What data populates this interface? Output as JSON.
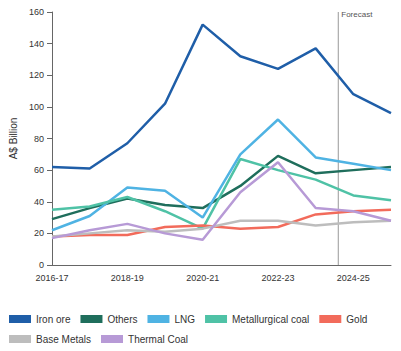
{
  "chart_data": {
    "type": "line",
    "y_label": "A$ Billion",
    "categories": [
      "2016-17",
      null,
      "2018-19",
      null,
      "2020-21",
      null,
      "2022-23",
      null,
      "2024-25",
      null
    ],
    "ylim": [
      0,
      160
    ],
    "yticks": [
      0,
      20,
      40,
      60,
      80,
      100,
      120,
      140,
      160
    ],
    "grid": false,
    "legend": "bottom",
    "annotations": [
      {
        "text": "Forecast",
        "x": 7.6
      }
    ],
    "series": [
      {
        "name": "Iron ore",
        "color": "#1f5ea8",
        "values": [
          62,
          61,
          77,
          102,
          152,
          132,
          124,
          137,
          108,
          96
        ]
      },
      {
        "name": "Others",
        "color": "#1f6e5c",
        "values": [
          29,
          36,
          42,
          38,
          36,
          50,
          69,
          58,
          60,
          62
        ]
      },
      {
        "name": "LNG",
        "color": "#4fb3e3",
        "values": [
          22,
          31,
          49,
          47,
          30,
          70,
          92,
          68,
          64,
          60
        ]
      },
      {
        "name": "Metallurgical coal",
        "color": "#4fc2a6",
        "values": [
          35,
          37,
          43,
          34,
          23,
          67,
          60,
          54,
          44,
          41
        ]
      },
      {
        "name": "Gold",
        "color": "#f26b5b",
        "values": [
          18,
          19,
          19,
          24,
          25,
          23,
          24,
          32,
          34,
          35
        ]
      },
      {
        "name": "Base Metals",
        "color": "#bdbdbd",
        "values": [
          18,
          20,
          22,
          21,
          23,
          28,
          28,
          25,
          27,
          28
        ]
      },
      {
        "name": "Thermal Coal",
        "color": "#b79ad6",
        "values": [
          17,
          22,
          26,
          20,
          16,
          46,
          65,
          36,
          34,
          28
        ]
      }
    ]
  }
}
